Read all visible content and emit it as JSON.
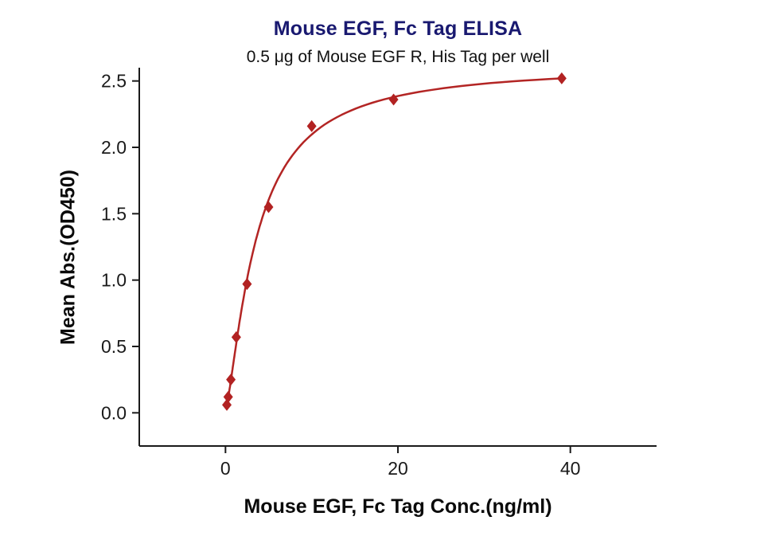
{
  "figure": {
    "title": "Mouse EGF, Fc Tag ELISA",
    "subtitle": "0.5 μg of Mouse EGF R, His Tag per well",
    "xlabel": "Mouse EGF, Fc Tag Conc.(ng/ml)",
    "ylabel": "Mean Abs.(OD450)"
  },
  "chart_data": {
    "type": "scatter",
    "title": "Mouse EGF, Fc Tag ELISA",
    "subtitle": "0.5 μg of Mouse EGF R, His Tag per well",
    "xlabel": "Mouse EGF, Fc Tag Conc.(ng/ml)",
    "ylabel": "Mean Abs.(OD450)",
    "points": [
      {
        "x": 0.156,
        "y": 0.06
      },
      {
        "x": 0.313,
        "y": 0.12
      },
      {
        "x": 0.625,
        "y": 0.25
      },
      {
        "x": 1.25,
        "y": 0.57
      },
      {
        "x": 2.5,
        "y": 0.97
      },
      {
        "x": 5,
        "y": 1.55
      },
      {
        "x": 10,
        "y": 2.16
      },
      {
        "x": 19.5,
        "y": 2.36
      },
      {
        "x": 39,
        "y": 2.52
      }
    ],
    "x_ticks": [
      {
        "value": 0,
        "label": "0"
      },
      {
        "value": 20,
        "label": "20"
      },
      {
        "value": 40,
        "label": "40"
      }
    ],
    "y_ticks": [
      {
        "value": 0.0,
        "label": "0.0"
      },
      {
        "value": 0.5,
        "label": "0.5"
      },
      {
        "value": 1.0,
        "label": "1.0"
      },
      {
        "value": 1.5,
        "label": "1.5"
      },
      {
        "value": 2.0,
        "label": "2.0"
      },
      {
        "value": 2.5,
        "label": "2.5"
      }
    ],
    "xlim": [
      -10,
      50
    ],
    "ylim": [
      -0.25,
      2.6
    ],
    "grid": false,
    "legend": "none",
    "marker": "diamond",
    "marker_color": "#b22222",
    "line_color": "#b32524",
    "axis_color": "#1a1a1a",
    "title_color": "#191970",
    "fit": {
      "model": "4PL",
      "a": 0.02,
      "b": 1.35,
      "c": 3.6,
      "d": 2.62,
      "x_start": 0.156,
      "x_end": 39
    }
  }
}
